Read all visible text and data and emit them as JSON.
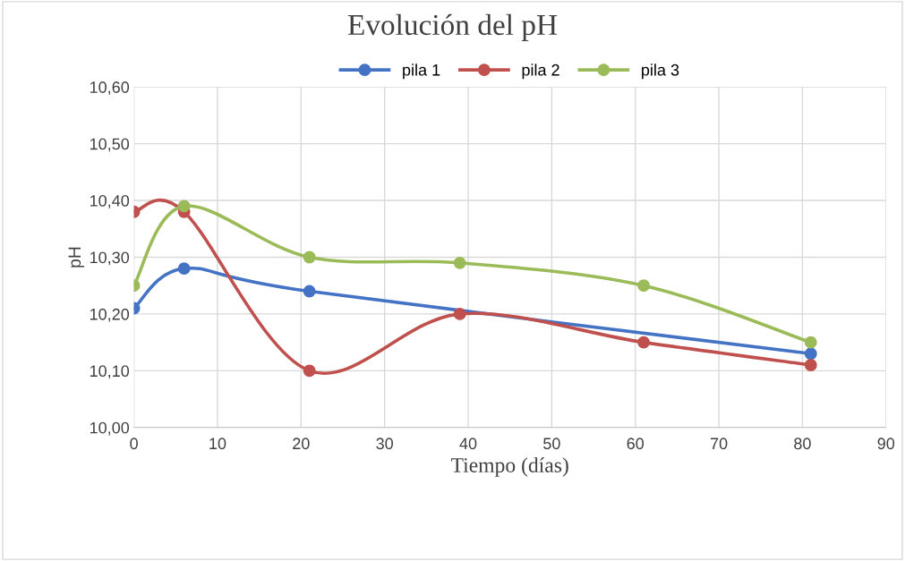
{
  "chart_data": {
    "type": "line",
    "title": "Evolución del pH",
    "xlabel": "Tiempo (días)",
    "ylabel": "pH",
    "x": [
      0,
      6,
      21,
      39,
      61,
      81
    ],
    "series": [
      {
        "name": "pila 1",
        "color": "#4472c4",
        "x": [
          0,
          6,
          21,
          81
        ],
        "values": [
          10.21,
          10.28,
          10.24,
          10.13
        ]
      },
      {
        "name": "pila 2",
        "color": "#c0504d",
        "values": [
          10.38,
          10.38,
          10.1,
          10.2,
          10.15,
          10.11
        ]
      },
      {
        "name": "pila 3",
        "color": "#9bbb59",
        "values": [
          10.25,
          10.39,
          10.3,
          10.29,
          10.25,
          10.15
        ]
      }
    ],
    "xlim": [
      0,
      90
    ],
    "xticks": [
      0,
      10,
      20,
      30,
      40,
      50,
      60,
      70,
      80,
      90
    ],
    "ylim": [
      10.0,
      10.6
    ],
    "yticks": [
      {
        "value": 10.0,
        "label": "10,00"
      },
      {
        "value": 10.1,
        "label": "10,10"
      },
      {
        "value": 10.2,
        "label": "10,20"
      },
      {
        "value": 10.3,
        "label": "10,30"
      },
      {
        "value": 10.4,
        "label": "10,40"
      },
      {
        "value": 10.5,
        "label": "10,50"
      },
      {
        "value": 10.6,
        "label": "10,60"
      }
    ],
    "grid": true,
    "legend": "top",
    "marker": "circle",
    "line_style": "solid"
  }
}
